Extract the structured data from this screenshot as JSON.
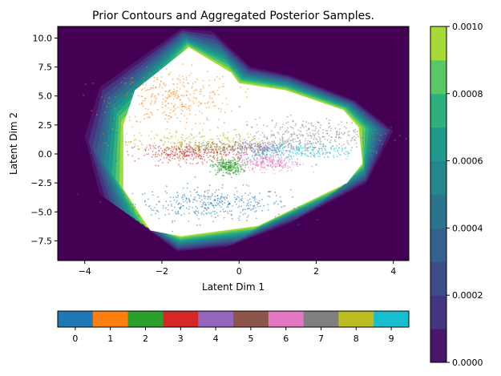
{
  "chart_data": {
    "type": "scatter",
    "title": "Prior Contours and Aggregated Posterior Samples.",
    "xlabel": "Latent Dim 1",
    "ylabel": "Latent Dim 2",
    "xlim": [
      -4.7,
      4.4
    ],
    "ylim": [
      -9.2,
      11.0
    ],
    "xticks": [
      -4,
      -2,
      0,
      2,
      4
    ],
    "yticks": [
      -7.5,
      -5.0,
      -2.5,
      0.0,
      2.5,
      5.0,
      7.5,
      10.0
    ],
    "xtick_labels": [
      "−4",
      "−2",
      "0",
      "2",
      "4"
    ],
    "ytick_labels": [
      "−7.5",
      "−5.0",
      "−2.5",
      "0.0",
      "2.5",
      "5.0",
      "7.5",
      "10.0"
    ],
    "prior_contours": {
      "background_color": "#440154",
      "levels": [
        0.0,
        0.0001,
        0.0002,
        0.0003,
        0.0004,
        0.0005,
        0.0006,
        0.0007,
        0.0008,
        0.0009,
        0.001
      ],
      "colors": [
        "#481769",
        "#453581",
        "#3d4d8a",
        "#34618d",
        "#2b748e",
        "#24878e",
        "#1f9a8a",
        "#2cb17e",
        "#58c765",
        "#a5db36",
        "#e1e418"
      ],
      "outer_boundary": [
        [
          -1.5,
          10.8
        ],
        [
          -0.7,
          10.6
        ],
        [
          0.3,
          7.5
        ],
        [
          1.3,
          6.8
        ],
        [
          3.0,
          4.6
        ],
        [
          4.0,
          2.0
        ],
        [
          3.3,
          -2.5
        ],
        [
          1.3,
          -6.0
        ],
        [
          -0.3,
          -8.0
        ],
        [
          -1.6,
          -8.4
        ],
        [
          -3.6,
          -3.5
        ],
        [
          -4.0,
          1.5
        ],
        [
          -3.6,
          5.8
        ]
      ],
      "inner_boundary": [
        [
          -1.3,
          9.2
        ],
        [
          -0.2,
          7.0
        ],
        [
          0.0,
          6.1
        ],
        [
          1.2,
          5.5
        ],
        [
          2.7,
          3.8
        ],
        [
          3.1,
          2.3
        ],
        [
          3.2,
          -0.8
        ],
        [
          2.8,
          -2.5
        ],
        [
          0.5,
          -6.2
        ],
        [
          -1.5,
          -7.1
        ],
        [
          -2.3,
          -6.6
        ],
        [
          -3.0,
          -3.0
        ],
        [
          -3.0,
          2.5
        ],
        [
          -2.7,
          5.5
        ]
      ],
      "colorbar": {
        "ticks": [
          0.0,
          0.0002,
          0.0004,
          0.0006,
          0.0008,
          0.001
        ],
        "tick_labels": [
          "0.0000",
          "0.0002",
          "0.0004",
          "0.0006",
          "0.0008",
          "0.0010"
        ]
      }
    },
    "series": [
      {
        "name": "0",
        "color": "#1f77b4",
        "center": [
          -0.7,
          -4.3
        ],
        "spread": [
          1.0,
          0.7
        ],
        "points": 380
      },
      {
        "name": "1",
        "color": "#ff7f0e",
        "center": [
          -1.7,
          4.8
        ],
        "spread": [
          0.8,
          1.2
        ],
        "points": 340
      },
      {
        "name": "2",
        "color": "#2ca02c",
        "center": [
          -0.3,
          -1.1
        ],
        "spread": [
          0.2,
          0.35
        ],
        "points": 260
      },
      {
        "name": "3",
        "color": "#d62728",
        "center": [
          -1.2,
          0.0
        ],
        "spread": [
          0.7,
          0.35
        ],
        "points": 280
      },
      {
        "name": "4",
        "color": "#9467bd",
        "center": [
          0.6,
          0.4
        ],
        "spread": [
          0.4,
          0.35
        ],
        "points": 180
      },
      {
        "name": "5",
        "color": "#8c564b",
        "center": [
          -0.6,
          0.6
        ],
        "spread": [
          0.9,
          0.25
        ],
        "points": 200
      },
      {
        "name": "6",
        "color": "#e377c2",
        "center": [
          0.8,
          -0.8
        ],
        "spread": [
          0.4,
          0.35
        ],
        "points": 220
      },
      {
        "name": "7",
        "color": "#7f7f7f",
        "center": [
          1.8,
          1.6
        ],
        "spread": [
          0.9,
          0.7
        ],
        "points": 320
      },
      {
        "name": "8",
        "color": "#bcbd22",
        "center": [
          -1.2,
          1.0
        ],
        "spread": [
          1.0,
          0.55
        ],
        "points": 260
      },
      {
        "name": "9",
        "color": "#17becf",
        "center": [
          1.5,
          0.3
        ],
        "spread": [
          0.8,
          0.4
        ],
        "points": 260
      }
    ],
    "class_colorbar": {
      "labels": [
        "0",
        "1",
        "2",
        "3",
        "4",
        "5",
        "6",
        "7",
        "8",
        "9"
      ]
    }
  }
}
